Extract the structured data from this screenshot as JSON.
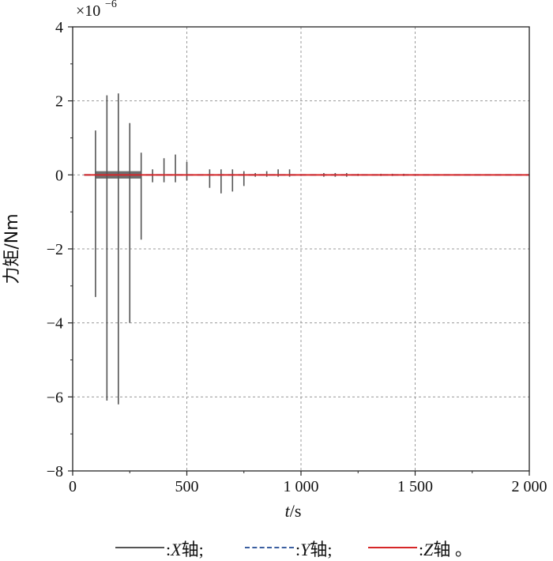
{
  "chart_data": {
    "type": "line",
    "title": "",
    "xlabel_italic": "t",
    "xlabel_unit": "/s",
    "ylabel": "力矩/Nm",
    "y_multiplier": "×10",
    "y_multiplier_exp": "−6",
    "xlim": [
      0,
      2000
    ],
    "ylim": [
      -8,
      4
    ],
    "x_ticks": [
      0,
      500,
      1000,
      1500,
      2000
    ],
    "x_tick_labels": [
      "0",
      "500",
      "1 000",
      "1 500",
      "2 000"
    ],
    "y_ticks": [
      4,
      2,
      0,
      -2,
      -4,
      -6,
      -8
    ],
    "y_tick_labels": [
      "4",
      "2",
      "0",
      "−2",
      "−4",
      "−6",
      "−8"
    ],
    "grid": true,
    "legend_position": "bottom",
    "series": [
      {
        "name": "X轴",
        "color": "#555555",
        "style": "solid",
        "spikes": [
          {
            "t": 100,
            "max": 1.2,
            "min": -3.3
          },
          {
            "t": 150,
            "max": 2.15,
            "min": -6.1
          },
          {
            "t": 200,
            "max": 2.2,
            "min": -6.2
          },
          {
            "t": 250,
            "max": 1.4,
            "min": -4.0
          },
          {
            "t": 300,
            "max": 0.6,
            "min": -1.75
          },
          {
            "t": 350,
            "max": 0.15,
            "min": -0.2
          },
          {
            "t": 400,
            "max": 0.45,
            "min": -0.2
          },
          {
            "t": 450,
            "max": 0.55,
            "min": -0.2
          },
          {
            "t": 500,
            "max": 0.35,
            "min": -0.15
          },
          {
            "t": 600,
            "max": 0.15,
            "min": -0.35
          },
          {
            "t": 650,
            "max": 0.15,
            "min": -0.5
          },
          {
            "t": 700,
            "max": 0.15,
            "min": -0.45
          },
          {
            "t": 750,
            "max": 0.1,
            "min": -0.3
          },
          {
            "t": 800,
            "max": 0.05,
            "min": -0.05
          },
          {
            "t": 850,
            "max": 0.1,
            "min": -0.05
          },
          {
            "t": 900,
            "max": 0.15,
            "min": -0.05
          },
          {
            "t": 950,
            "max": 0.15,
            "min": -0.05
          },
          {
            "t": 1100,
            "max": 0.05,
            "min": -0.05
          },
          {
            "t": 1150,
            "max": 0.05,
            "min": -0.05
          },
          {
            "t": 1200,
            "max": 0.05,
            "min": -0.05
          },
          {
            "t": 1250,
            "max": 0.03,
            "min": -0.03
          },
          {
            "t": 1350,
            "max": 0.03,
            "min": -0.03
          },
          {
            "t": 1400,
            "max": 0.03,
            "min": -0.03
          },
          {
            "t": 1450,
            "max": 0.03,
            "min": -0.03
          }
        ],
        "dense_bands": [
          {
            "t0": 100,
            "t1": 300,
            "max": 0.1,
            "min": -0.1
          }
        ]
      },
      {
        "name": "Y轴",
        "color": "#3b5fa0",
        "style": "dashed",
        "range": [
          50,
          2000
        ],
        "value": 0
      },
      {
        "name": "Z轴",
        "color": "#d62728",
        "style": "solid",
        "range": [
          50,
          2000
        ],
        "value": 0
      }
    ]
  },
  "legend": {
    "items": [
      {
        "colon": ":",
        "axis": "X",
        "suffix": "轴;",
        "color": "#555555",
        "style": "solid"
      },
      {
        "colon": ":",
        "axis": "Y",
        "suffix": "轴;",
        "color": "#3b5fa0",
        "style": "dashed"
      },
      {
        "colon": ":",
        "axis": "Z",
        "suffix": "轴 。",
        "color": "#d62728",
        "style": "solid"
      }
    ]
  }
}
